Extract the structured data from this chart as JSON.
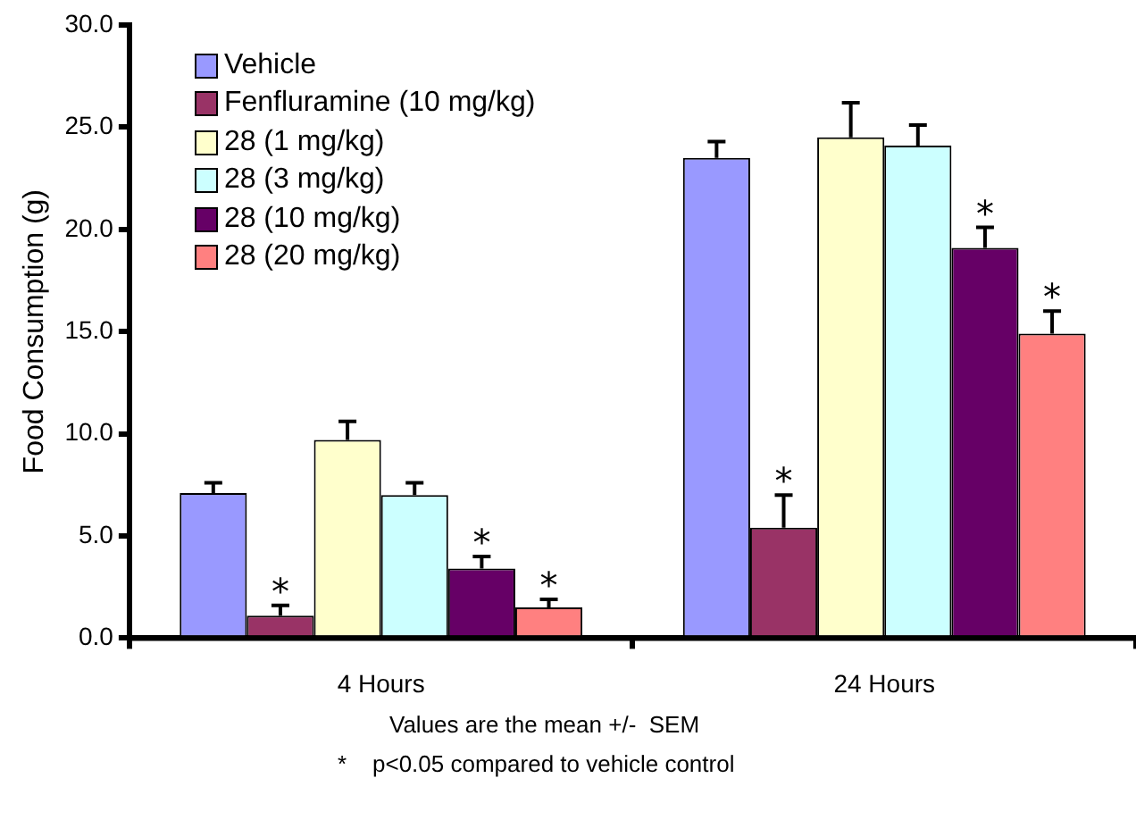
{
  "chart_data": {
    "type": "bar",
    "ylabel": "Food Consumption (g)",
    "categories": [
      "4 Hours",
      "24 Hours"
    ],
    "series": [
      {
        "name": "Vehicle",
        "color": "#9999ff",
        "values": [
          7.1,
          23.5
        ],
        "errors": [
          [
            7.1,
            7.6
          ],
          [
            23.5,
            24.3
          ]
        ]
      },
      {
        "name": "Fenfluramine (10 mg/kg)",
        "color": "#993366",
        "values": [
          1.1,
          5.4
        ],
        "errors": [
          [
            1.1,
            1.6
          ],
          [
            5.4,
            7.0
          ]
        ],
        "value_labels": [
          "*",
          "*"
        ]
      },
      {
        "name": "28 (1 mg/kg)",
        "color": "#ffffcc",
        "values": [
          9.7,
          24.5
        ],
        "errors": [
          [
            9.7,
            10.6
          ],
          [
            24.5,
            26.2
          ]
        ]
      },
      {
        "name": "28 (3 mg/kg)",
        "color": "#ccffff",
        "values": [
          7.0,
          24.1
        ],
        "errors": [
          [
            7.0,
            7.6
          ],
          [
            24.1,
            25.1
          ]
        ]
      },
      {
        "name": "28 (10 mg/kg)",
        "color": "#660066",
        "values": [
          3.4,
          19.1
        ],
        "errors": [
          [
            3.4,
            4.0
          ],
          [
            19.1,
            20.1
          ]
        ],
        "value_labels": [
          "*",
          "*"
        ]
      },
      {
        "name": "28 (20 mg/kg)",
        "color": "#ff8080",
        "values": [
          1.5,
          14.9
        ],
        "errors": [
          [
            1.5,
            1.9
          ],
          [
            14.9,
            16.0
          ]
        ],
        "value_labels": [
          "*",
          "*"
        ]
      }
    ],
    "ylim": [
      0,
      30
    ],
    "yticks": [
      {
        "value": 0,
        "label": "0.0"
      },
      {
        "value": 5,
        "label": "5.0"
      },
      {
        "value": 10,
        "label": "10.0"
      },
      {
        "value": 15,
        "label": "15.0"
      },
      {
        "value": 20,
        "label": "20.0"
      },
      {
        "value": 25,
        "label": "25.0"
      },
      {
        "value": 30,
        "label": "30.0"
      }
    ],
    "grid": false,
    "legend": "top left",
    "annotations": [
      "Values are the mean +/-  SEM",
      "*    p<0.05 compared to vehicle control"
    ]
  }
}
